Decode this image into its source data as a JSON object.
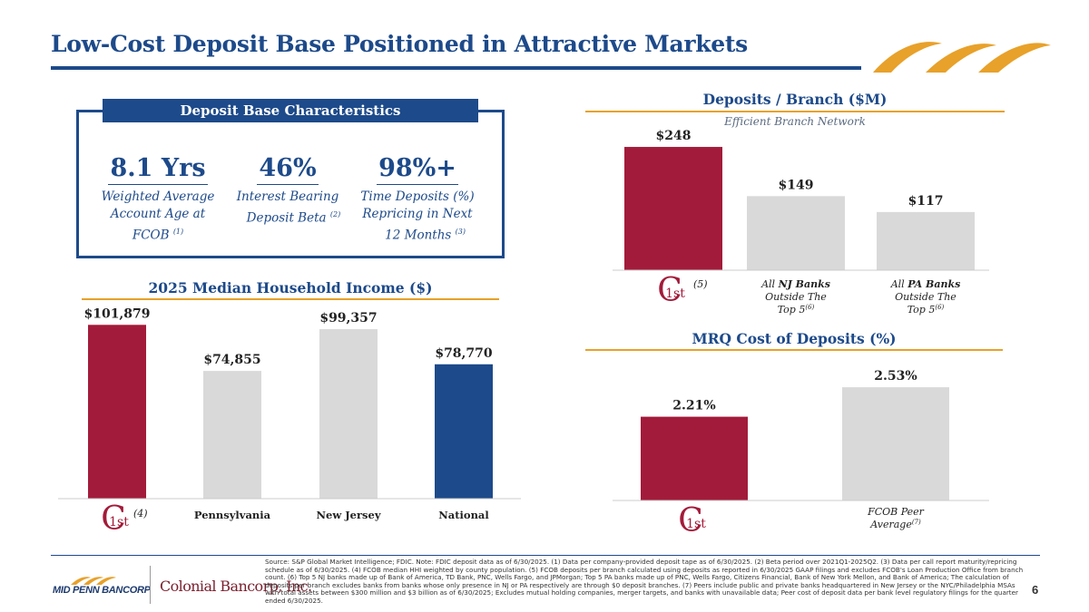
{
  "page": {
    "title": "Low-Cost Deposit Base Positioned in Attractive Markets",
    "page_number": "6"
  },
  "deposit_base": {
    "header": "Deposit Base Characteristics",
    "kpis": [
      {
        "value": "8.1 Yrs",
        "desc1": "Weighted Average",
        "desc2": "Account Age at",
        "desc3": "FCOB",
        "sup": "(1)"
      },
      {
        "value": "46%",
        "desc1": "Interest Bearing",
        "desc2": "Deposit Beta",
        "desc3": "",
        "sup": "(2)"
      },
      {
        "value": "98%+",
        "desc1": "Time Deposits (%)",
        "desc2": "Repricing in Next",
        "desc3": "12 Months",
        "sup": "(3)"
      }
    ]
  },
  "colors": {
    "primary_blue": "#1d4a8a",
    "accent_red": "#a31b3a",
    "gray_bar": "#d9d9d9",
    "gold": "#e8a12a"
  },
  "chart_data": [
    {
      "type": "bar",
      "title": "Deposits / Branch ($M)",
      "subtitle": "Efficient Branch Network",
      "categories": [
        "1st",
        "All NJ Banks Outside The Top 5",
        "All PA Banks Outside The Top 5"
      ],
      "values": [
        248,
        149,
        117
      ],
      "value_labels": [
        "$248",
        "$149",
        "$117"
      ],
      "category_notes": [
        "(5)",
        "(6)",
        "(6)"
      ],
      "category_parts": [
        {
          "pre": "All ",
          "bold": "NJ Banks",
          "line2": "Outside The",
          "line3": "Top 5",
          "sup": "(6)"
        },
        {
          "pre": "All ",
          "bold": "PA Banks",
          "line2": "Outside The",
          "line3": "Top 5",
          "sup": "(6)"
        }
      ],
      "ylim": [
        0,
        270
      ]
    },
    {
      "type": "bar",
      "title": "2025 Median Household Income ($)",
      "categories": [
        "1st",
        "Pennsylvania",
        "New Jersey",
        "National"
      ],
      "values": [
        101879,
        74855,
        99357,
        78770
      ],
      "value_labels": [
        "$101,879",
        "$74,855",
        "$99,357",
        "$78,770"
      ],
      "category_notes": [
        "(4)"
      ],
      "ylim": [
        0,
        110000
      ]
    },
    {
      "type": "bar",
      "title": "MRQ Cost of Deposits (%)",
      "categories": [
        "1st",
        "FCOB Peer Average"
      ],
      "values": [
        2.21,
        2.53
      ],
      "value_labels": [
        "2.21%",
        "2.53%"
      ],
      "peer_label": {
        "line1": "FCOB Peer",
        "line2": "Average",
        "sup": "(7)"
      },
      "ylim": [
        1.3,
        2.6
      ]
    }
  ],
  "brand": {
    "c1st_big": "C",
    "c1st_small": "1st",
    "mid_penn": "MID PENN BANCORP",
    "colonial": "Colonial Bancorp, Inc."
  },
  "footnote": "Source: S&P Global Market Intelligence; FDIC. Note: FDIC deposit data as of 6/30/2025. (1) Data per company-provided deposit tape as of 6/30/2025. (2) Beta period over 2021Q1-2025Q2. (3) Data per call report maturity/repricing schedule as of 6/30/2025. (4) FCOB median HHI weighted by county population. (5) FCOB deposits per branch calculated using deposits as reported in 6/30/2025 GAAP filings and excludes FCOB's Loan Production Office from branch count. (6) Top 5 NJ banks made up of Bank of America, TD Bank, PNC, Wells Fargo, and JPMorgan; Top 5 PA banks made up of PNC, Wells Fargo, Citizens Financial, Bank of New York Mellon, and Bank of America; The calculation of deposits per branch excludes banks from banks whose only presence in NJ or PA respectively are through $0 deposit branches. (7) Peers include public and private banks headquartered in New Jersey or the NYC/Philadelphia MSAs with total assets between $300 million and $3 billion as of 6/30/2025; Excludes mutual holding companies, merger targets, and banks with unavailable data; Peer cost of deposit data per bank level regulatory filings for the quarter ended 6/30/2025."
}
